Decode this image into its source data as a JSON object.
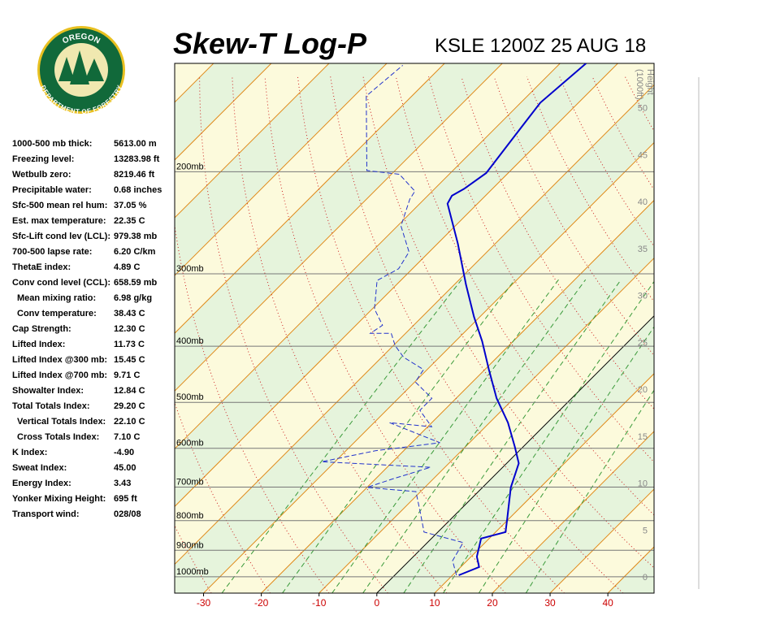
{
  "logo": {
    "top": "OREGON",
    "bottom": "DEPARTMENT OF FORESTRY"
  },
  "stats": [
    {
      "label": "1000-500 mb thick:",
      "value": "5613.00 m"
    },
    {
      "label": "Freezing level:",
      "value": "13283.98 ft"
    },
    {
      "label": "Wetbulb zero:",
      "value": "8219.46 ft"
    },
    {
      "label": "Precipitable water:",
      "value": "0.68 inches"
    },
    {
      "label": "Sfc-500 mean rel hum:",
      "value": "37.05 %"
    },
    {
      "label": "Est. max temperature:",
      "value": "22.35 C"
    },
    {
      "label": "Sfc-Lift cond lev (LCL):",
      "value": "979.38 mb"
    },
    {
      "label": "700-500 lapse rate:",
      "value": "6.20 C/km"
    },
    {
      "label": "ThetaE index:",
      "value": "4.89 C"
    },
    {
      "label": "Conv cond level (CCL):",
      "value": "658.59 mb"
    },
    {
      "label": "Mean mixing ratio:",
      "value": "6.98 g/kg",
      "indent": true
    },
    {
      "label": "Conv temperature:",
      "value": "38.43 C",
      "indent": true
    },
    {
      "label": "Cap Strength:",
      "value": "12.30 C"
    },
    {
      "label": "Lifted Index:",
      "value": "11.73 C"
    },
    {
      "label": "Lifted Index @300 mb:",
      "value": "15.45 C"
    },
    {
      "label": "Lifted Index @700 mb:",
      "value": "9.71 C"
    },
    {
      "label": "Showalter Index:",
      "value": "12.84 C"
    },
    {
      "label": "Total Totals Index:",
      "value": "29.20 C"
    },
    {
      "label": "Vertical Totals Index:",
      "value": "22.10 C",
      "indent": true
    },
    {
      "label": "Cross Totals Index:",
      "value": "7.10 C",
      "indent": true
    },
    {
      "label": "K Index:",
      "value": "-4.90"
    },
    {
      "label": "Sweat Index:",
      "value": "45.00"
    },
    {
      "label": "Energy Index:",
      "value": "3.43"
    },
    {
      "label": "Yonker Mixing Height:",
      "value": "695 ft"
    },
    {
      "label": "Transport wind:",
      "value": "028/08"
    }
  ],
  "chart_data": {
    "type": "skew-t",
    "title": "Skew-T Log-P",
    "subtitle": "KSLE 1200Z 25 AUG 18",
    "xlim": [
      -35,
      48
    ],
    "xticks": [
      -30,
      -20,
      -10,
      0,
      10,
      20,
      30,
      40
    ],
    "ylim": [
      1067,
      130
    ],
    "log_y": true,
    "yticks": [
      {
        "value": 1000,
        "label": "1000mb"
      },
      {
        "value": 900,
        "label": "900mb"
      },
      {
        "value": 800,
        "label": "800mb"
      },
      {
        "value": 700,
        "label": "700mb"
      },
      {
        "value": 600,
        "label": "600mb"
      },
      {
        "value": 500,
        "label": "500mb"
      },
      {
        "value": 400,
        "label": "400mb"
      },
      {
        "value": 300,
        "label": "300mb"
      },
      {
        "value": 200,
        "label": "200mb"
      }
    ],
    "height_title": "Height",
    "height_units": "(1000ft)",
    "height_ticks": [
      0,
      5,
      10,
      15,
      20,
      25,
      30,
      35,
      40,
      45,
      50
    ],
    "series": [
      {
        "color": "#0000cc",
        "dash": false,
        "pressure": [
          994,
          962,
          923,
          859,
          837,
          798,
          701,
          637,
          597,
          542,
          492,
          439,
          392,
          356,
          313,
          266,
          227,
          220,
          214,
          201,
          175,
          152,
          130
        ],
        "values": [
          11.1,
          13.2,
          11.0,
          8.6,
          11.7,
          9.9,
          4.9,
          2.1,
          -1.4,
          -6.8,
          -13.0,
          -19.3,
          -25.4,
          -31.0,
          -38.0,
          -46.5,
          -55.2,
          -55.8,
          -54.9,
          -53.8,
          -55.2,
          -56.6,
          -55.5
        ]
      },
      {
        "color": "#2233cc",
        "dash": true,
        "pressure": [
          994,
          938,
          873,
          837,
          772,
          713,
          701,
          679,
          647,
          633,
          606,
          587,
          542,
          551,
          516,
          492,
          461,
          439,
          418,
          399,
          380,
          380,
          368,
          345,
          308,
          294,
          275,
          248,
          223,
          216,
          202,
          199,
          148,
          131
        ],
        "values": [
          10.7,
          7.5,
          6.2,
          -2.4,
          -6.6,
          -10.8,
          -20.0,
          -17.2,
          -12.5,
          -32.3,
          -24.9,
          -15.1,
          -27.3,
          -19.3,
          -24.2,
          -24.2,
          -29.9,
          -30.6,
          -36.2,
          -39.7,
          -42.5,
          -46.1,
          -45.4,
          -49.6,
          -54.1,
          -52.4,
          -53.5,
          -59.4,
          -62.5,
          -63.0,
          -68.6,
          -74.9,
          -87.9,
          -86.9
        ]
      }
    ]
  }
}
